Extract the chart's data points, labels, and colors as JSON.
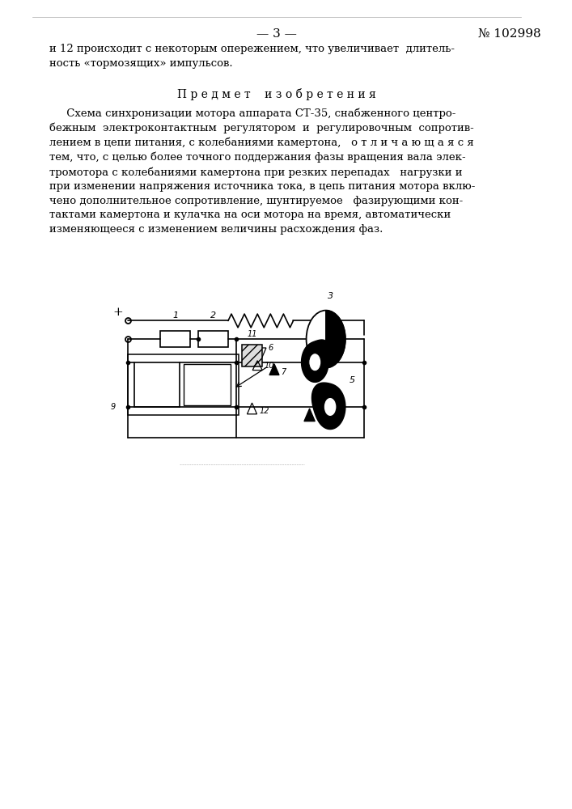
{
  "page_number": "— 3 —",
  "patent_number": "№ 102998",
  "text_block1": "и 12 происходит с некоторым опережением, что увеличивает  длитель-\nность «тормозящих» импульсов.",
  "section_title": "П р е д м е т    и з о б р е т е н и я",
  "text_block2": "     Схема синхронизации мотора аппарата СТ-35, снабженного центро-\nбежным  электроконтактным  регулятором  и  регулировочным  сопротив-\nлением в цепи питания, с колебаниями камертона,   о т л и ч а ю щ а я с я\nтем, что, с целью более точного поддержания фазы вращения вала элек-\nтромотора с колебаниями камертона при резких перепадах   нагрузки и\nпри изменении напряжения источника тока, в цепь питания мотора вклю-\nчено дополнительное сопротивление, шунтируемое   фазирующими кон-\nтактами камертона и кулачка на оси мотора на время, автоматически\nизменяющееся с изменением величины расхождения фаз.",
  "bg_color": "#ffffff",
  "text_color": "#000000",
  "line_color": "#000000"
}
